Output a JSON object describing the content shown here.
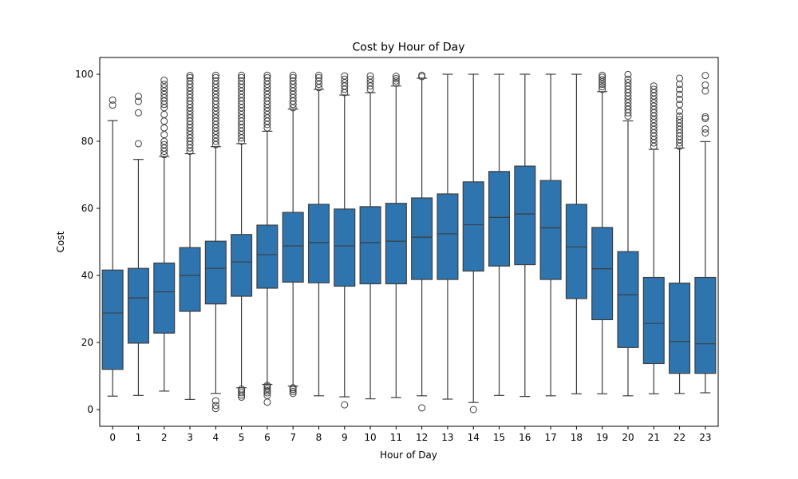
{
  "chart_data": {
    "type": "box",
    "title": "Cost by Hour of Day",
    "xlabel": "Hour of Day",
    "ylabel": "Cost",
    "ylim": [
      -5,
      105
    ],
    "yticks": [
      0,
      20,
      40,
      60,
      80,
      100
    ],
    "grid": false,
    "legend": "none",
    "colors": {
      "box_fill": "#2e75b0",
      "line": "#3d3d3d",
      "frame": "#000000"
    },
    "categories": [
      "0",
      "1",
      "2",
      "3",
      "4",
      "5",
      "6",
      "7",
      "8",
      "9",
      "10",
      "11",
      "12",
      "13",
      "14",
      "15",
      "16",
      "17",
      "18",
      "19",
      "20",
      "21",
      "22",
      "23"
    ],
    "boxes": [
      {
        "hour": "0",
        "whisker_low": 4,
        "q1": 12,
        "median": 28.8,
        "q3": 41.6,
        "whisker_high": 86.2,
        "outliers": [
          90.8,
          92.3
        ]
      },
      {
        "hour": "1",
        "whisker_low": 4.2,
        "q1": 19.8,
        "median": 33.3,
        "q3": 42.1,
        "whisker_high": 74.6,
        "outliers": [
          79.3,
          88.5,
          91.9,
          93.4
        ]
      },
      {
        "hour": "2",
        "whisker_low": 5.5,
        "q1": 22.8,
        "median": 35.1,
        "q3": 43.7,
        "whisker_high": 75.5,
        "outliers": [
          76,
          77,
          78,
          79,
          80,
          82,
          84,
          86,
          88,
          90,
          91,
          92,
          93,
          94,
          95,
          96,
          97,
          98.2
        ]
      },
      {
        "hour": "3",
        "whisker_low": 3,
        "q1": 29.3,
        "median": 40,
        "q3": 48.3,
        "whisker_high": 76.3,
        "outliers": [
          77,
          78,
          79,
          80,
          81,
          82,
          83,
          84,
          85,
          86,
          87,
          88,
          89,
          90,
          91,
          92,
          93,
          94,
          95,
          96,
          97,
          98,
          99,
          99.6
        ]
      },
      {
        "hour": "4",
        "whisker_low": 4.8,
        "q1": 31.5,
        "median": 42.1,
        "q3": 50.2,
        "whisker_high": 78.4,
        "outliers": [
          0.3,
          1.2,
          2.6,
          79,
          80,
          81,
          82,
          83,
          84,
          85,
          86,
          87,
          88,
          89,
          90,
          91,
          92,
          93,
          94,
          95,
          96,
          97,
          98,
          99,
          99.7
        ]
      },
      {
        "hour": "5",
        "whisker_low": 6.5,
        "q1": 33.8,
        "median": 44,
        "q3": 52.2,
        "whisker_high": 79.3,
        "outliers": [
          3.7,
          4.3,
          5,
          5.6,
          6.1,
          80,
          81,
          82,
          83,
          84,
          85,
          86,
          87,
          88,
          89,
          90,
          91,
          92,
          93,
          94,
          95,
          96,
          97,
          98,
          99,
          99.7
        ]
      },
      {
        "hour": "6",
        "whisker_low": 7.5,
        "q1": 36.2,
        "median": 46.2,
        "q3": 55,
        "whisker_high": 83,
        "outliers": [
          2.2,
          4.2,
          5,
          5.6,
          6.2,
          6.8,
          7.2,
          84,
          85,
          86,
          87,
          88,
          89,
          90,
          91,
          92,
          93,
          94,
          95,
          96,
          97,
          98,
          99,
          99.7
        ]
      },
      {
        "hour": "7",
        "whisker_low": 7,
        "q1": 38,
        "median": 48.8,
        "q3": 58.8,
        "whisker_high": 89.6,
        "outliers": [
          4.8,
          5.4,
          6,
          6.5,
          90,
          91,
          92,
          93,
          94,
          95,
          96,
          97,
          98,
          99,
          99.7
        ]
      },
      {
        "hour": "8",
        "whisker_low": 4.1,
        "q1": 37.8,
        "median": 49.8,
        "q3": 61.2,
        "whisker_high": 95.5,
        "outliers": [
          96,
          97,
          98,
          99,
          99.7
        ]
      },
      {
        "hour": "9",
        "whisker_low": 3.8,
        "q1": 36.8,
        "median": 48.8,
        "q3": 59.8,
        "whisker_high": 93.8,
        "outliers": [
          1.4,
          94.5,
          95.5,
          96.5,
          97.5,
          98.5,
          99.5
        ]
      },
      {
        "hour": "10",
        "whisker_low": 3.2,
        "q1": 37.5,
        "median": 49.8,
        "q3": 60.5,
        "whisker_high": 94.5,
        "outliers": [
          95.5,
          96.5,
          97.5,
          98.5,
          99.5
        ]
      },
      {
        "hour": "11",
        "whisker_low": 3.6,
        "q1": 37.5,
        "median": 50.2,
        "q3": 61.5,
        "whisker_high": 96.5,
        "outliers": [
          97.3,
          98,
          98.7,
          99.4
        ]
      },
      {
        "hour": "12",
        "whisker_low": 4.1,
        "q1": 38.8,
        "median": 51.4,
        "q3": 63.1,
        "whisker_high": 98.8,
        "outliers": [
          0.5,
          99.3,
          99.7
        ]
      },
      {
        "hour": "13",
        "whisker_low": 3.1,
        "q1": 38.8,
        "median": 52.4,
        "q3": 64.3,
        "whisker_high": 100,
        "outliers": []
      },
      {
        "hour": "14",
        "whisker_low": 2.1,
        "q1": 41.3,
        "median": 55.1,
        "q3": 67.9,
        "whisker_high": 100,
        "outliers": [
          0
        ]
      },
      {
        "hour": "15",
        "whisker_low": 4.2,
        "q1": 42.8,
        "median": 57.3,
        "q3": 71,
        "whisker_high": 100,
        "outliers": []
      },
      {
        "hour": "16",
        "whisker_low": 3.9,
        "q1": 43.2,
        "median": 58.3,
        "q3": 72.6,
        "whisker_high": 100,
        "outliers": []
      },
      {
        "hour": "17",
        "whisker_low": 4.1,
        "q1": 38.8,
        "median": 54.2,
        "q3": 68.3,
        "whisker_high": 100,
        "outliers": []
      },
      {
        "hour": "18",
        "whisker_low": 4.7,
        "q1": 33.1,
        "median": 48.5,
        "q3": 61.2,
        "whisker_high": 100,
        "outliers": []
      },
      {
        "hour": "19",
        "whisker_low": 4.7,
        "q1": 26.8,
        "median": 42,
        "q3": 54.3,
        "whisker_high": 94.8,
        "outliers": [
          95.5,
          96.3,
          97,
          97.7,
          98.4,
          99.1,
          99.7
        ]
      },
      {
        "hour": "20",
        "whisker_low": 4.1,
        "q1": 18.5,
        "median": 34.2,
        "q3": 47.1,
        "whisker_high": 86.1,
        "outliers": [
          87.5,
          88.5,
          89.5,
          90.5,
          91.5,
          92.5,
          93.5,
          94.5,
          95.5,
          96.5,
          97.5,
          98.5,
          99.9
        ]
      },
      {
        "hour": "21",
        "whisker_low": 4.7,
        "q1": 13.7,
        "median": 25.7,
        "q3": 39.4,
        "whisker_high": 77.6,
        "outliers": [
          78.5,
          79.5,
          80.5,
          81.5,
          82.5,
          83.5,
          84.5,
          85.5,
          86.5,
          87.5,
          88.5,
          89.5,
          90.5,
          91.5,
          92.5,
          93.5,
          94.5,
          95.5,
          96.5
        ]
      },
      {
        "hour": "22",
        "whisker_low": 4.8,
        "q1": 10.8,
        "median": 20.3,
        "q3": 37.7,
        "whisker_high": 78,
        "outliers": [
          78.5,
          79.5,
          80.5,
          81.5,
          82.5,
          83.5,
          84.5,
          85.5,
          86.5,
          87.5,
          89,
          91,
          92.5,
          94,
          95.5,
          97,
          98.8
        ]
      },
      {
        "hour": "23",
        "whisker_low": 5,
        "q1": 10.8,
        "median": 19.6,
        "q3": 39.4,
        "whisker_high": 79.9,
        "outliers": [
          82.5,
          83.7,
          86.8,
          87.3,
          95,
          96.8,
          99.6
        ]
      }
    ]
  }
}
